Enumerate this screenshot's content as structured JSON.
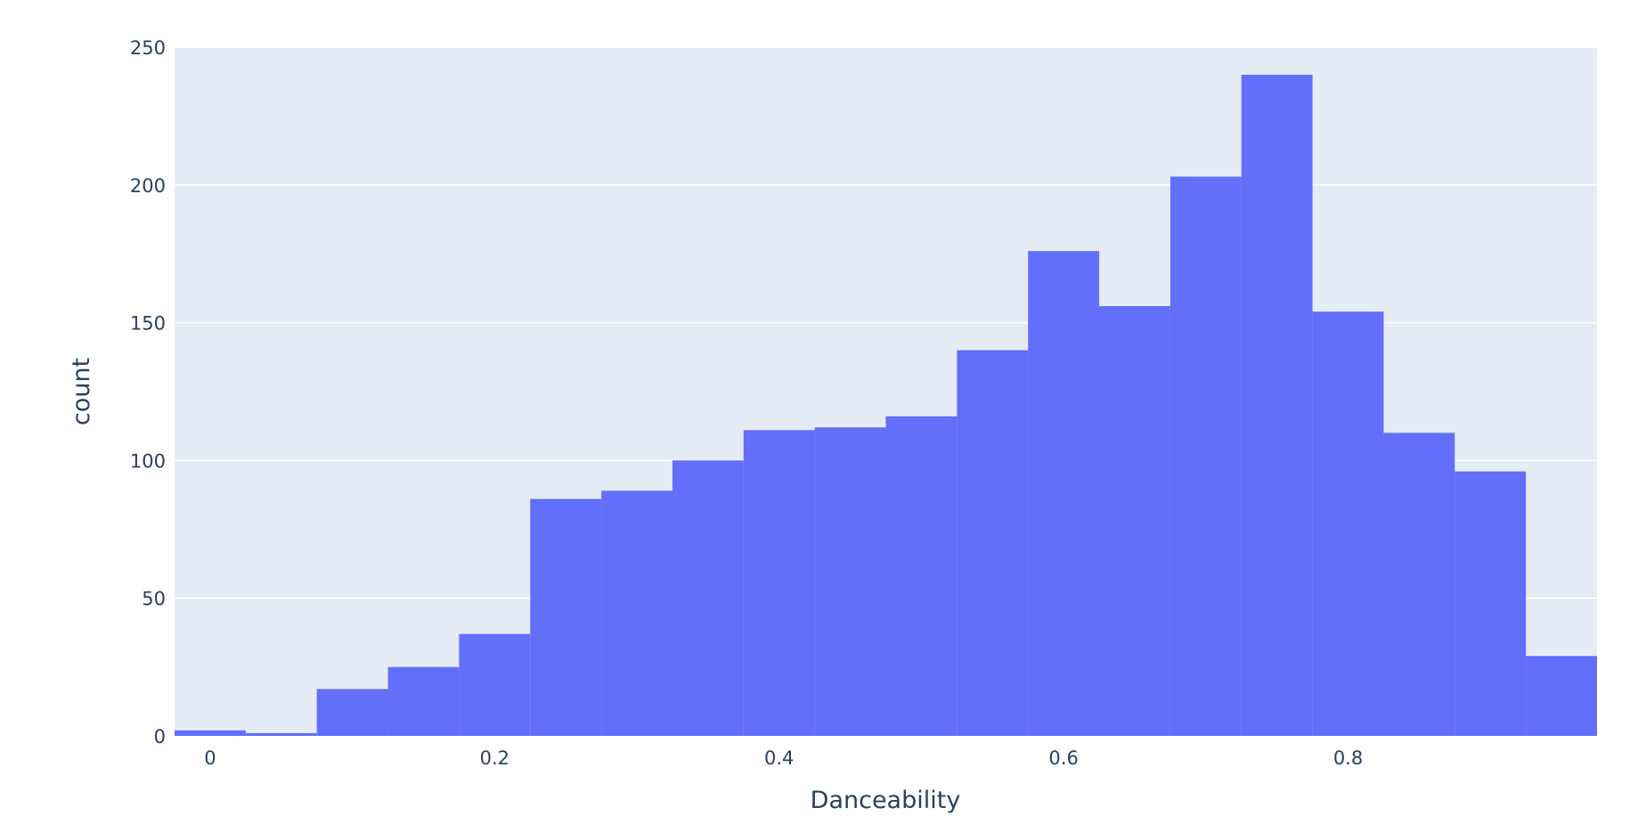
{
  "chart_data": {
    "type": "bar",
    "subtype": "histogram",
    "xlabel": "Danceability",
    "ylabel": "count",
    "xlim": [
      -0.025,
      0.975
    ],
    "ylim": [
      0,
      250
    ],
    "grid": true,
    "colors": {
      "bar": "#636efa",
      "plot_bg": "#e5ecf6",
      "grid": "#ffffff",
      "text": "#2a3f5f"
    },
    "bin_width": 0.05,
    "bin_starts": [
      -0.025,
      0.025,
      0.075,
      0.125,
      0.175,
      0.225,
      0.275,
      0.325,
      0.375,
      0.425,
      0.475,
      0.525,
      0.575,
      0.625,
      0.675,
      0.725,
      0.775,
      0.825,
      0.875,
      0.925
    ],
    "values": [
      2,
      1,
      17,
      25,
      37,
      86,
      89,
      100,
      111,
      112,
      116,
      140,
      176,
      156,
      203,
      240,
      154,
      110,
      96,
      29
    ],
    "x_ticks": [
      0,
      0.2,
      0.4,
      0.6,
      0.8
    ],
    "x_tick_labels": [
      "0",
      "0.2",
      "0.4",
      "0.6",
      "0.8"
    ],
    "y_ticks": [
      0,
      50,
      100,
      150,
      200,
      250
    ],
    "y_tick_labels": [
      "0",
      "50",
      "100",
      "150",
      "200",
      "250"
    ]
  }
}
